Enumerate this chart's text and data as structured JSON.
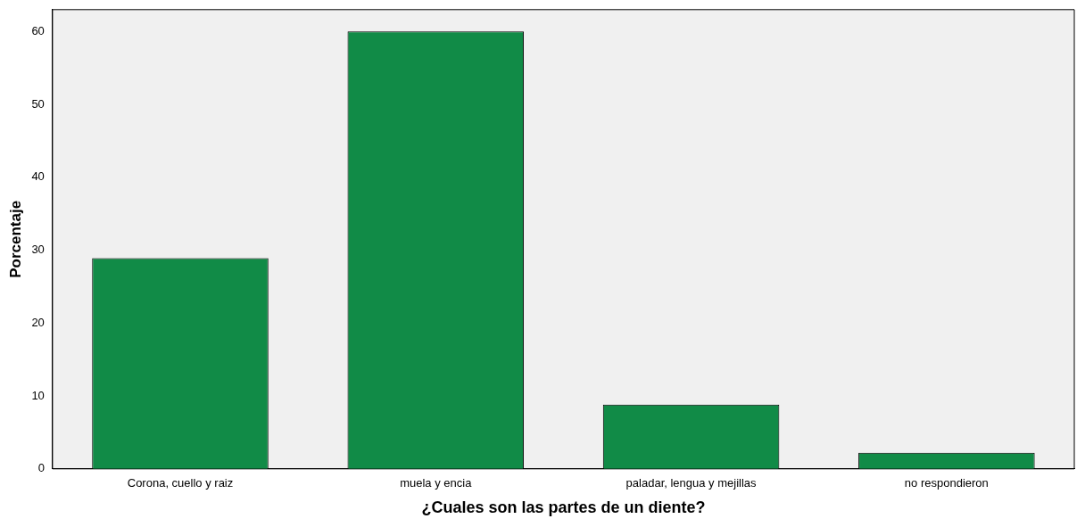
{
  "chart_data": {
    "type": "bar",
    "xlabel": "¿Cuales son las partes de un diente?",
    "ylabel": "Porcentaje",
    "categories": [
      "Corona, cuello y raiz",
      "muela y encia",
      "paladar, lengua y mejillas",
      "no respondieron"
    ],
    "values": [
      28.9,
      60,
      8.8,
      2.2
    ],
    "color": "#118b47",
    "ylim": [
      0,
      63
    ],
    "yticks": [
      0,
      10,
      20,
      30,
      40,
      50,
      60
    ],
    "grid": false,
    "legend": false
  }
}
